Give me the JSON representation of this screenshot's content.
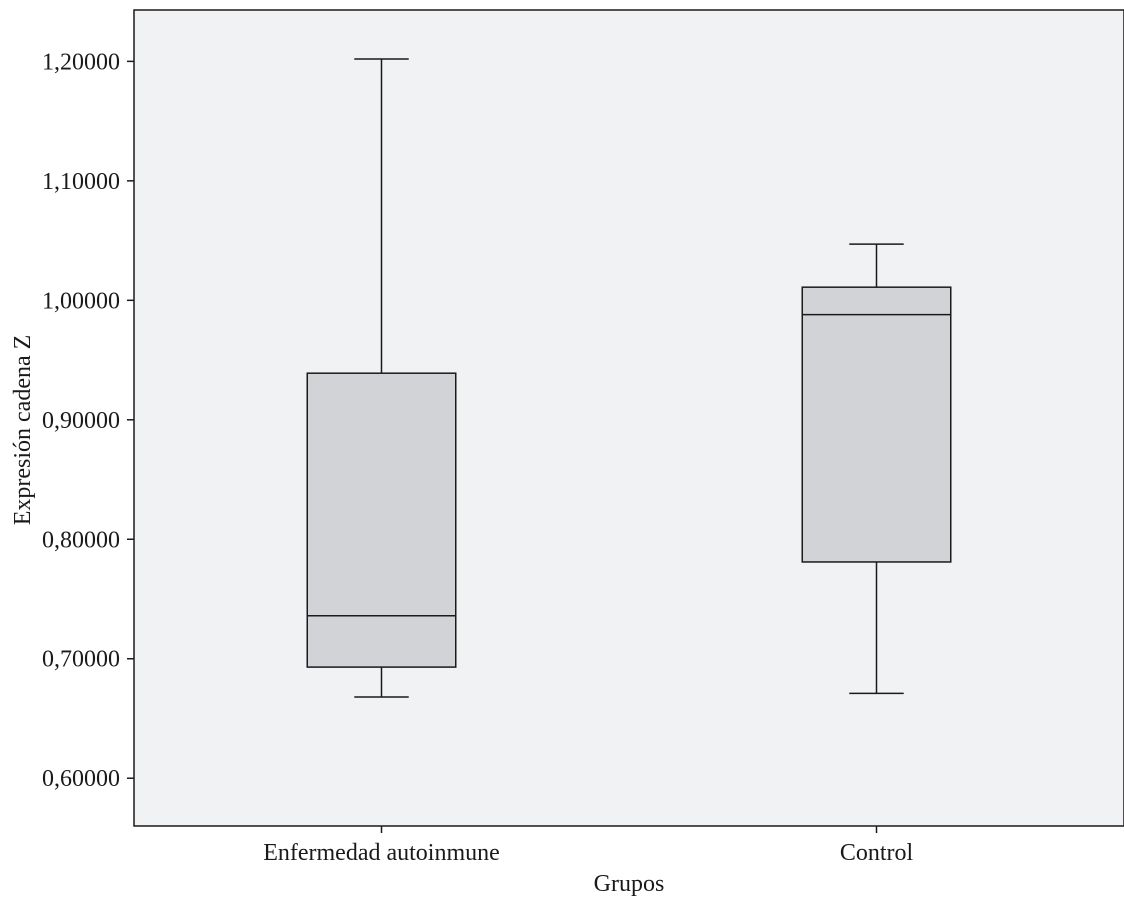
{
  "chart_data": {
    "type": "boxplot",
    "title": "",
    "xlabel": "Grupos",
    "ylabel": "Expresión cadena Z",
    "ylim": [
      0.56,
      1.243
    ],
    "yticks": [
      0.6,
      0.7,
      0.8,
      0.9,
      1.0,
      1.1,
      1.2
    ],
    "ytick_labels": [
      "0,60000",
      "0,70000",
      "0,80000",
      "0,90000",
      "1,00000",
      "1,10000",
      "1,20000"
    ],
    "categories": [
      "Enfermedad autoinmune",
      "Control"
    ],
    "boxes": [
      {
        "category": "Enfermedad autoinmune",
        "min": 0.668,
        "q1": 0.693,
        "median": 0.736,
        "q3": 0.939,
        "max": 1.202
      },
      {
        "category": "Control",
        "min": 0.671,
        "q1": 0.781,
        "median": 0.988,
        "q3": 1.011,
        "max": 1.047
      }
    ],
    "grid": false,
    "colors": {
      "plot_background": "#f1f2f4",
      "box_fill": "#d2d3d6",
      "line": "#1a1a1a"
    }
  }
}
